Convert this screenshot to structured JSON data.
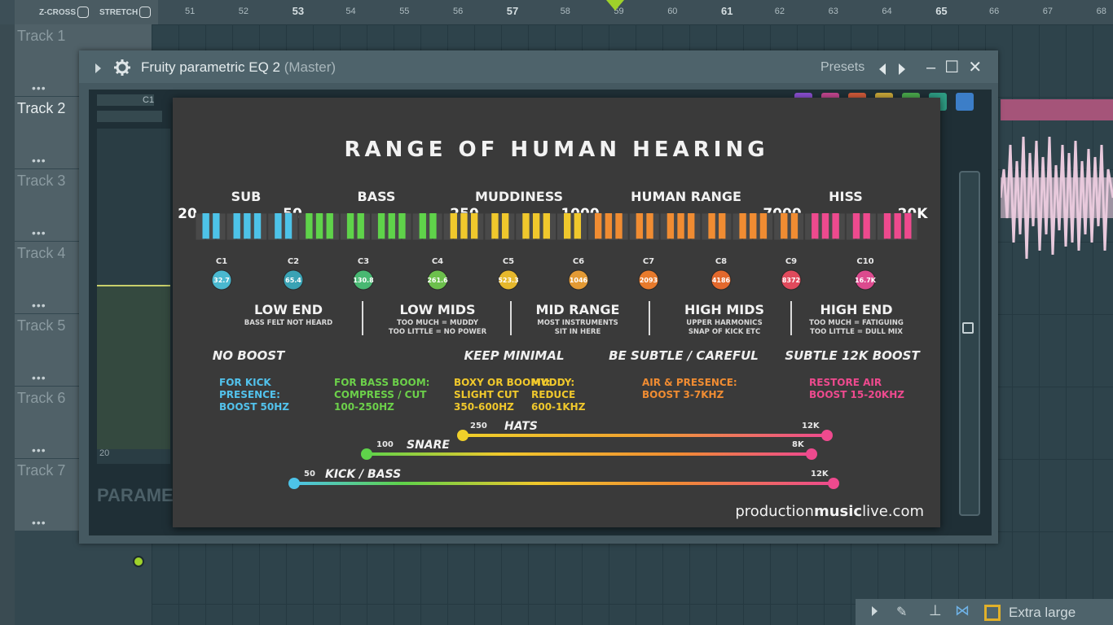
{
  "toolbar": {
    "zcross": "Z-CROSS",
    "stretch": "STRETCH"
  },
  "ruler": [
    "51",
    "52",
    "53",
    "54",
    "55",
    "56",
    "57",
    "58",
    "59",
    "60",
    "61",
    "62",
    "63",
    "64",
    "65",
    "66",
    "67",
    "68"
  ],
  "tracks": [
    "Track 1",
    "Track 2",
    "Track 3",
    "Track 4",
    "Track 5",
    "Track 6",
    "Track 7"
  ],
  "eq": {
    "title": "Fruity parametric EQ 2",
    "subtitle": "(Master)",
    "presets": "Presets",
    "c1": "C1",
    "bottom_label": "20",
    "param_label": "PARAME"
  },
  "bottom": {
    "zoom_label": "Extra large"
  },
  "colors": {
    "accent_green": "#9fd22a",
    "clip": "#a55479",
    "sub": "#4dc3e8",
    "bass": "#5fd34a",
    "mud": "#f0c82c",
    "human": "#f08c32",
    "hiss": "#ee4a8e"
  },
  "chart_data": {
    "type": "table",
    "title": "RANGE OF HUMAN HEARING",
    "ranges": [
      "SUB",
      "BASS",
      "MUDDINESS",
      "HUMAN RANGE",
      "HISS"
    ],
    "freq_markers": [
      "20",
      "50",
      "250",
      "1000",
      "7000",
      "20K"
    ],
    "notes": [
      {
        "note": "C1",
        "freq": "32.7"
      },
      {
        "note": "C2",
        "freq": "65.4"
      },
      {
        "note": "C3",
        "freq": "130.8"
      },
      {
        "note": "C4",
        "freq": "261.6"
      },
      {
        "note": "C5",
        "freq": "523.3"
      },
      {
        "note": "C6",
        "freq": "1046"
      },
      {
        "note": "C7",
        "freq": "2093"
      },
      {
        "note": "C8",
        "freq": "4186"
      },
      {
        "note": "C9",
        "freq": "8372"
      },
      {
        "note": "C10",
        "freq": "16.7K"
      }
    ],
    "bands": [
      {
        "title": "LOW END",
        "lines": [
          "BASS FELT NOT HEARD"
        ]
      },
      {
        "title": "LOW MIDS",
        "lines": [
          "TOO MUCH = MUDDY",
          "TOO LITTLE = NO POWER"
        ]
      },
      {
        "title": "MID RANGE",
        "lines": [
          "MOST INSTRUMENTS",
          "SIT IN HERE"
        ]
      },
      {
        "title": "HIGH MIDS",
        "lines": [
          "UPPER HARMONICS",
          "SNAP OF KICK ETC"
        ]
      },
      {
        "title": "HIGH END",
        "lines": [
          "TOO MUCH = FATIGUING",
          "TOO LITTLE = DULL MIX"
        ]
      }
    ],
    "advice": [
      "NO BOOST",
      "KEEP MINIMAL",
      "BE SUBTLE / CAREFUL",
      "SUBTLE 12K BOOST"
    ],
    "tips": [
      {
        "lines": [
          "FOR KICK",
          "PRESENCE:",
          "BOOST 50HZ"
        ]
      },
      {
        "lines": [
          "FOR BASS BOOM:",
          "COMPRESS / CUT",
          "100-250HZ"
        ]
      },
      {
        "lines": [
          "BOXY OR BOOMY:",
          "SLIGHT CUT",
          "350-600HZ"
        ]
      },
      {
        "lines": [
          "MUDDY:",
          "REDUCE",
          "600-1KHZ"
        ]
      },
      {
        "lines": [
          "AIR & PRESENCE:",
          "BOOST 3-7KHZ"
        ]
      },
      {
        "lines": [
          "RESTORE AIR",
          "BOOST 15-20KHZ"
        ]
      }
    ],
    "instruments": [
      {
        "name": "HATS",
        "low": "250",
        "high": "12K"
      },
      {
        "name": "SNARE",
        "low": "100",
        "high": "8K"
      },
      {
        "name": "KICK / BASS",
        "low": "50",
        "high": "12K"
      }
    ],
    "credit": [
      "production",
      "music",
      "live",
      ".com"
    ]
  }
}
